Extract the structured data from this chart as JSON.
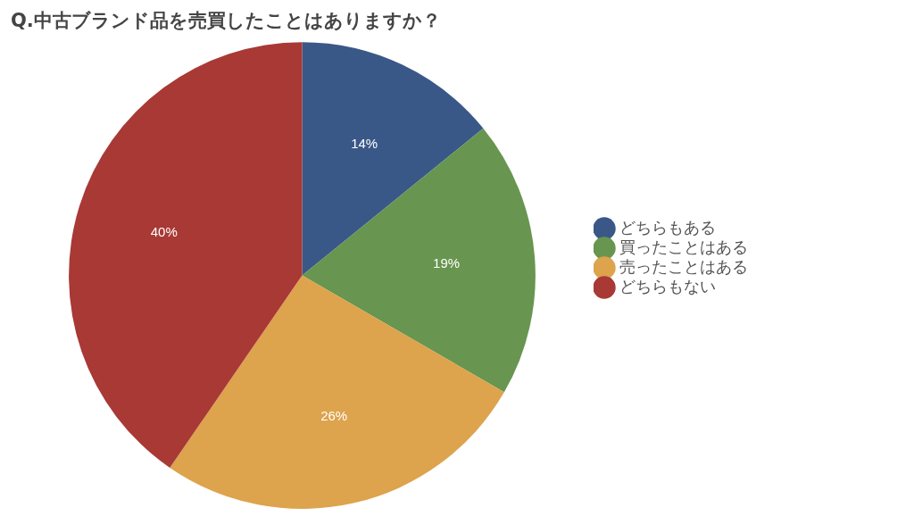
{
  "chart_data": {
    "type": "pie",
    "title": "Q.中古ブランド品を売買したことはありますか？",
    "categories": [
      "どちらもある",
      "買ったことはある",
      "売ったことはある",
      "どちらもない"
    ],
    "values": [
      14,
      19,
      26,
      40
    ],
    "value_labels": [
      "14%",
      "19%",
      "26%",
      "40%"
    ],
    "colors": [
      "#3a5887",
      "#68954f",
      "#dda34d",
      "#a83935"
    ],
    "legend": "right"
  }
}
